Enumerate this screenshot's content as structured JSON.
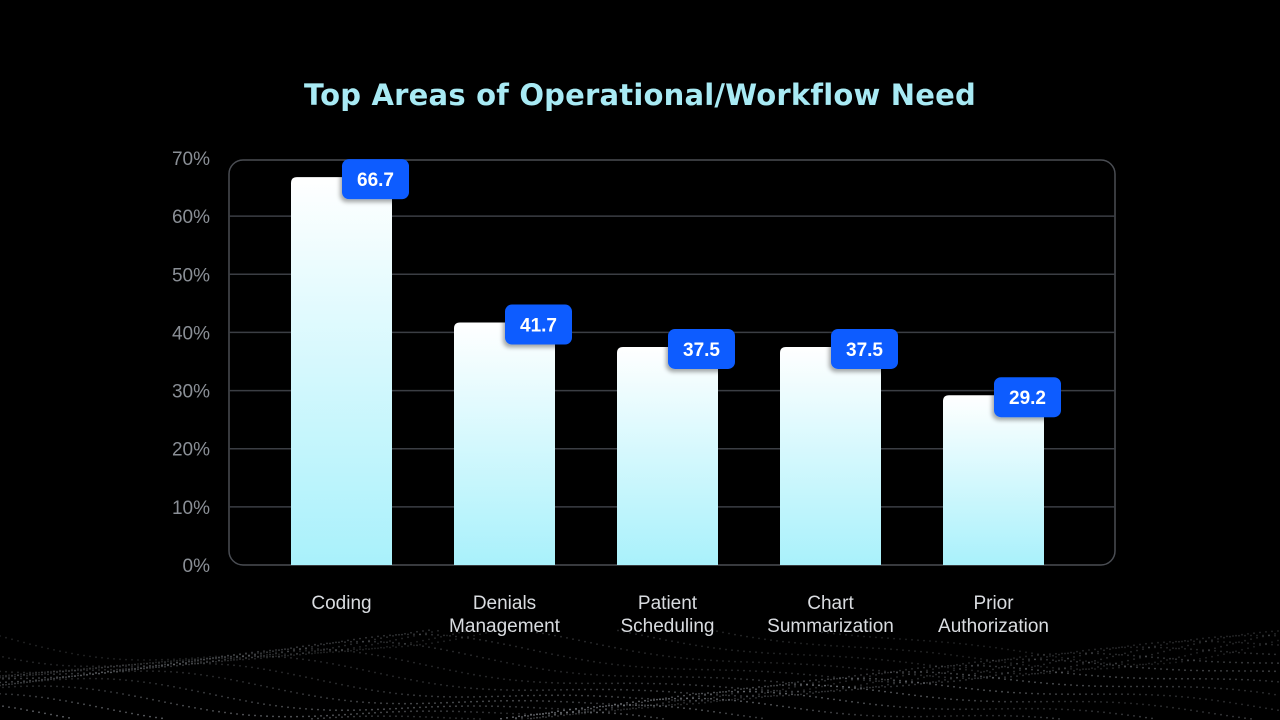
{
  "colors": {
    "background": "#000000",
    "title": "#a8eaf4",
    "bar_top": "#ffffff",
    "bar_bottom": "#a9f1fb",
    "badge": "#0a5cff",
    "grid": "#3b3e44",
    "frame": "#4a4d53",
    "dots": "#8e9298"
  },
  "chart_data": {
    "type": "bar",
    "title": "Top Areas of Operational/Workflow Need",
    "categories": [
      [
        "Coding"
      ],
      [
        "Denials",
        "Management"
      ],
      [
        "Patient",
        "Scheduling"
      ],
      [
        "Chart",
        "Summarization"
      ],
      [
        "Prior",
        "Authorization"
      ]
    ],
    "values": [
      66.7,
      41.7,
      37.5,
      37.5,
      29.2
    ],
    "data_labels": [
      "66.7",
      "41.7",
      "37.5",
      "37.5",
      "29.2"
    ],
    "ylim": [
      0,
      70
    ],
    "y_ticks": [
      0,
      10,
      20,
      30,
      40,
      50,
      60,
      70
    ],
    "y_tick_labels": [
      "0%",
      "10%",
      "20%",
      "30%",
      "40%",
      "50%",
      "60%",
      "70%"
    ],
    "xlabel": "",
    "ylabel": "",
    "grid": true,
    "legend": "none"
  }
}
